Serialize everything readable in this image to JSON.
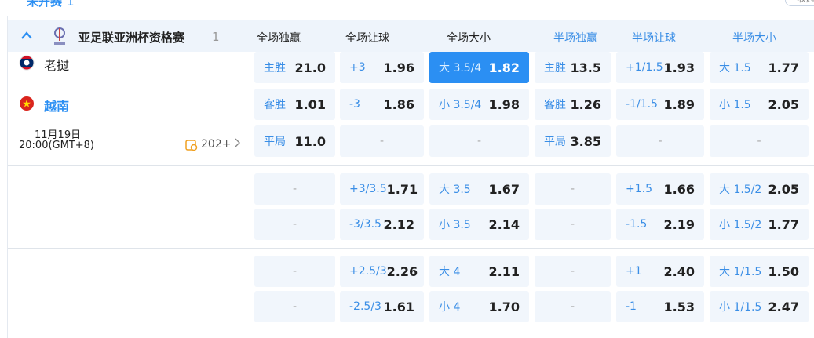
{
  "header": {
    "status": "未开赛",
    "status_count": "1",
    "collapse": "收起"
  },
  "match": {
    "league": "亚足联亚洲杯资格赛",
    "count": "1",
    "home": "老挝",
    "away": "越南",
    "date": "11月19日",
    "time": "20:00(GMT+8)",
    "more": "202+"
  },
  "columns": [
    "全场独赢",
    "全场让球",
    "全场大小",
    "半场独赢",
    "半场让球",
    "半场大小"
  ],
  "groups": [
    {
      "rows": [
        {
          "cells": [
            {
              "label": "主胜",
              "odds": "21.0"
            },
            {
              "label": "+3",
              "odds": "1.96"
            },
            {
              "label": "大 3.5/4",
              "odds": "1.82",
              "selected": true
            },
            {
              "label": "主胜",
              "odds": "13.5"
            },
            {
              "label": "+1/1.5",
              "odds": "1.93"
            },
            {
              "label": "大 1.5",
              "odds": "1.77"
            }
          ]
        },
        {
          "cells": [
            {
              "label": "客胜",
              "odds": "1.01"
            },
            {
              "label": "-3",
              "odds": "1.86"
            },
            {
              "label": "小 3.5/4",
              "odds": "1.98"
            },
            {
              "label": "客胜",
              "odds": "1.26"
            },
            {
              "label": "-1/1.5",
              "odds": "1.89"
            },
            {
              "label": "小 1.5",
              "odds": "2.05"
            }
          ]
        },
        {
          "cells": [
            {
              "label": "平局",
              "odds": "11.0"
            },
            {
              "empty": "-"
            },
            {
              "empty": "-"
            },
            {
              "label": "平局",
              "odds": "3.85"
            },
            {
              "empty": "-"
            },
            {
              "empty": "-"
            }
          ]
        }
      ]
    },
    {
      "rows": [
        {
          "cells": [
            {
              "empty": "-"
            },
            {
              "label": "+3/3.5",
              "odds": "1.71"
            },
            {
              "label": "大 3.5",
              "odds": "1.67"
            },
            {
              "empty": "-"
            },
            {
              "label": "+1.5",
              "odds": "1.66"
            },
            {
              "label": "大 1.5/2",
              "odds": "2.05"
            }
          ]
        },
        {
          "cells": [
            {
              "empty": "-"
            },
            {
              "label": "-3/3.5",
              "odds": "2.12"
            },
            {
              "label": "小 3.5",
              "odds": "2.14"
            },
            {
              "empty": "-"
            },
            {
              "label": "-1.5",
              "odds": "2.19"
            },
            {
              "label": "小 1.5/2",
              "odds": "1.77"
            }
          ]
        }
      ]
    },
    {
      "rows": [
        {
          "cells": [
            {
              "empty": "-"
            },
            {
              "label": "+2.5/3",
              "odds": "2.26"
            },
            {
              "label": "大 4",
              "odds": "2.11"
            },
            {
              "empty": "-"
            },
            {
              "label": "+1",
              "odds": "2.40"
            },
            {
              "label": "大 1/1.5",
              "odds": "1.50"
            }
          ]
        },
        {
          "cells": [
            {
              "empty": "-"
            },
            {
              "label": "-2.5/3",
              "odds": "1.61"
            },
            {
              "label": "小 4",
              "odds": "1.70"
            },
            {
              "empty": "-"
            },
            {
              "label": "-1",
              "odds": "1.53"
            },
            {
              "label": "小 1/1.5",
              "odds": "2.47"
            }
          ]
        }
      ]
    }
  ]
}
